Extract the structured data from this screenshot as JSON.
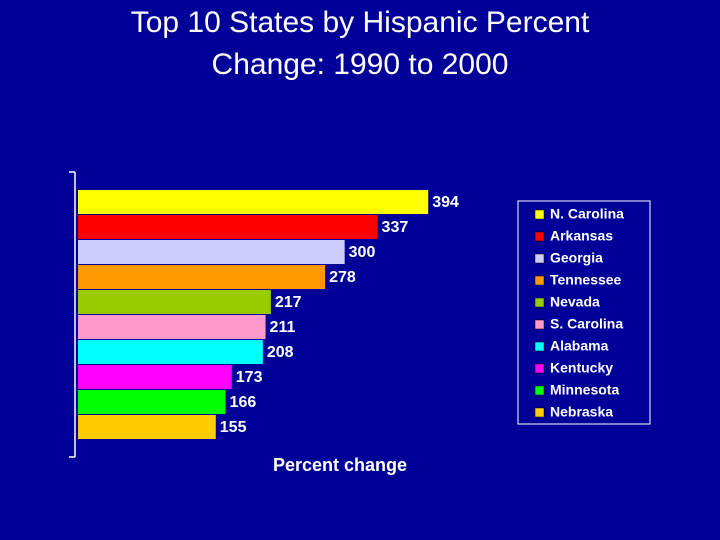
{
  "chart_data": {
    "type": "bar",
    "orientation": "horizontal",
    "title": "Top 10 States by Hispanic Percent Change: 1990 to 2000",
    "x_label": "Percent change",
    "xlim": [
      0,
      450
    ],
    "legend": "right",
    "series": [
      {
        "name": "N. Carolina",
        "color": "#ffff00",
        "values": [
          394
        ]
      },
      {
        "name": "Arkansas",
        "color": "#ff0000",
        "values": [
          337
        ]
      },
      {
        "name": "Georgia",
        "color": "#ccccff",
        "values": [
          300
        ]
      },
      {
        "name": "Tennessee",
        "color": "#ff9900",
        "values": [
          278
        ]
      },
      {
        "name": "Nevada",
        "color": "#99cc00",
        "values": [
          217
        ]
      },
      {
        "name": "S. Carolina",
        "color": "#ff99cc",
        "values": [
          211
        ]
      },
      {
        "name": "Alabama",
        "color": "#00ffff",
        "values": [
          208
        ]
      },
      {
        "name": "Kentucky",
        "color": "#ff00ff",
        "values": [
          173
        ]
      },
      {
        "name": "Minnesota",
        "color": "#00ff00",
        "values": [
          166
        ]
      },
      {
        "name": "Nebraska",
        "color": "#ffcc00",
        "values": [
          155
        ]
      }
    ]
  }
}
